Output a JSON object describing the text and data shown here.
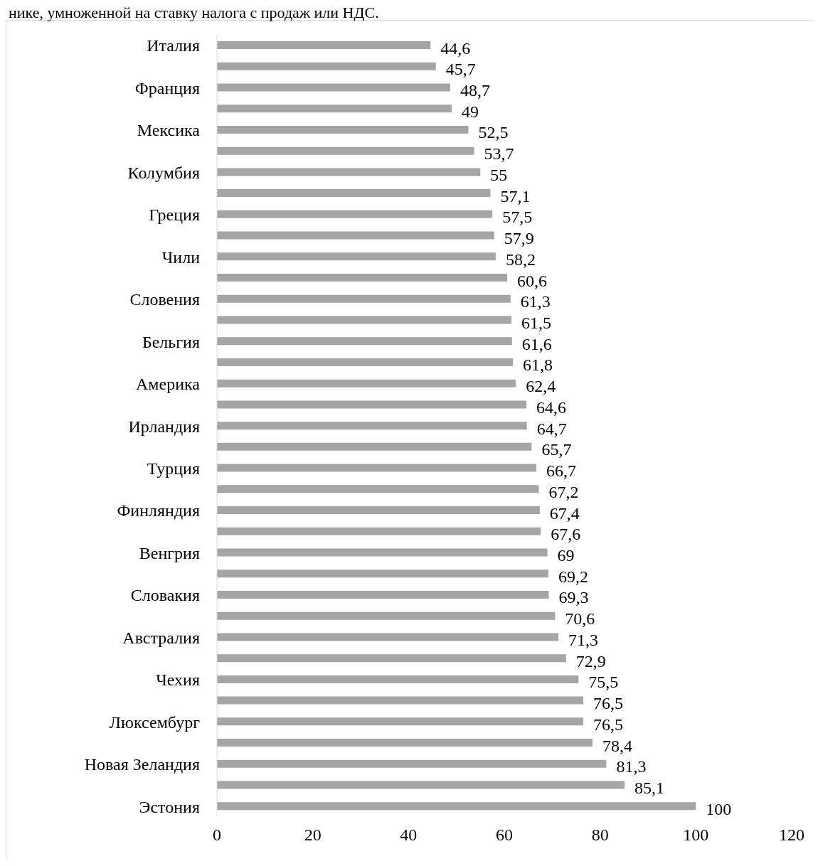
{
  "chart_data": {
    "type": "bar",
    "orientation": "horizontal",
    "title": "нике, умноженной на ставку налога с продаж или НДС.",
    "categories": [
      "Италия",
      null,
      "Франция",
      null,
      "Мексика",
      null,
      "Колумбия",
      null,
      "Греция",
      null,
      "Чили",
      null,
      "Словения",
      null,
      "Бельгия",
      null,
      "Америка",
      null,
      "Ирландия",
      null,
      "Турция",
      null,
      "Финляндия",
      null,
      "Венгрия",
      null,
      "Словакия",
      null,
      "Австралия",
      null,
      "Чехия",
      null,
      "Люксембург",
      null,
      "Новая Зеландия",
      null,
      "Эстония"
    ],
    "values": [
      44.6,
      45.7,
      48.7,
      49,
      52.5,
      53.7,
      55,
      57.1,
      57.5,
      57.9,
      58.2,
      60.6,
      61.3,
      61.5,
      61.6,
      61.8,
      62.4,
      64.6,
      64.7,
      65.7,
      66.7,
      67.2,
      67.4,
      67.6,
      69,
      69.2,
      69.3,
      70.6,
      71.3,
      72.9,
      75.5,
      76.5,
      76.5,
      78.4,
      81.3,
      85.1,
      100
    ],
    "value_labels": [
      "44,6",
      "45,7",
      "48,7",
      "49",
      "52,5",
      "53,7",
      "55",
      "57,1",
      "57,5",
      "57,9",
      "58,2",
      "60,6",
      "61,3",
      "61,5",
      "61,6",
      "61,8",
      "62,4",
      "64,6",
      "64,7",
      "65,7",
      "66,7",
      "67,2",
      "67,4",
      "67,6",
      "69",
      "69,2",
      "69,3",
      "70,6",
      "71,3",
      "72,9",
      "75,5",
      "76,5",
      "76,5",
      "78,4",
      "81,3",
      "85,1",
      "100"
    ],
    "color": "#a5a5a5",
    "xlim": [
      0,
      120
    ],
    "xticks": [
      0,
      20,
      40,
      60,
      80,
      100,
      120
    ],
    "grid": false
  }
}
